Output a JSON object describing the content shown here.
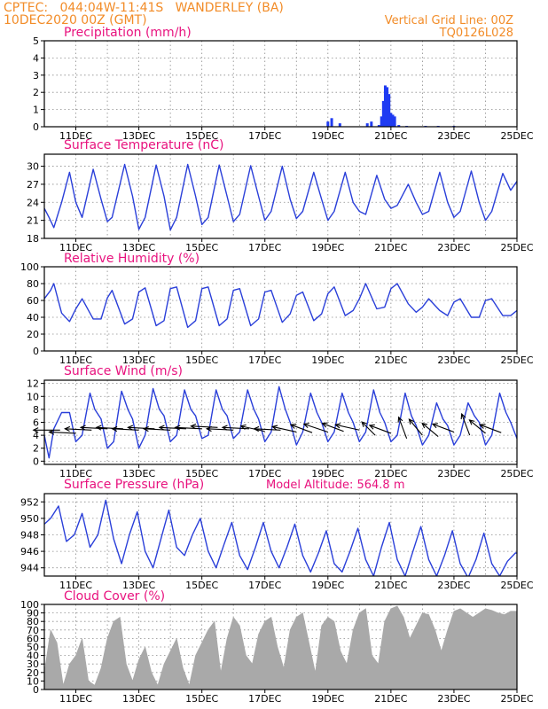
{
  "header": {
    "line1_left": "CPTEC:   044:04W-11:41S   WANDERLEY (BA)",
    "line2_left": "10DEC2020 00Z (GMT)",
    "line1_right": "Vertical Grid Line: 00Z",
    "line2_right": "TQ0126L028",
    "model_altitude": "Model Altitude: 564.8 m"
  },
  "colors": {
    "header_text": "#f28c28",
    "panel_title": "#e8127e",
    "series_line": "#2a3fd9",
    "precip_bar": "#1f3bf2",
    "cloud_fill": "#a9a9a9",
    "wind_arrow": "#000000",
    "grid": "#8a8a8a"
  },
  "chart_data": [
    {
      "id": "precip",
      "type": "bar",
      "title": "Precipitation (mm/h)",
      "x_start_day": 10,
      "ylim": [
        0,
        5
      ],
      "yticks": [
        "0",
        "1",
        "2",
        "3",
        "4",
        "5"
      ],
      "xtick_labels": [
        "11DEC",
        "13DEC",
        "15DEC",
        "17DEC",
        "19DEC",
        "21DEC",
        "23DEC",
        "25DEC"
      ],
      "x": [
        19.0,
        19.12,
        19.38,
        20.25,
        20.38,
        20.62,
        20.7,
        20.76,
        20.82,
        20.88,
        20.94,
        21.0,
        21.06,
        21.12,
        21.25,
        21.5,
        22.1,
        22.5,
        23.0
      ],
      "values": [
        0.3,
        0.5,
        0.2,
        0.2,
        0.3,
        0.1,
        0.6,
        1.5,
        2.4,
        2.3,
        1.9,
        0.8,
        0.7,
        0.6,
        0.1,
        0.05,
        0.05,
        0.05,
        0.05
      ],
      "grid": true
    },
    {
      "id": "temp",
      "type": "line",
      "title": "Surface Temperature (nC)",
      "x_start_day": 10,
      "ylim": [
        18,
        32
      ],
      "yticks": [
        "18",
        "21",
        "24",
        "27",
        "30"
      ],
      "ytick_values": [
        18,
        21,
        24,
        27,
        30
      ],
      "xtick_labels": [
        "11DEC",
        "13DEC",
        "15DEC",
        "17DEC",
        "19DEC",
        "21DEC",
        "23DEC",
        "25DEC"
      ],
      "x": [
        10.0,
        10.15,
        10.3,
        10.55,
        10.8,
        11.0,
        11.2,
        11.55,
        11.8,
        12.0,
        12.15,
        12.55,
        12.8,
        13.0,
        13.2,
        13.55,
        13.8,
        14.0,
        14.2,
        14.55,
        14.8,
        15.0,
        15.2,
        15.55,
        15.8,
        16.0,
        16.2,
        16.55,
        16.8,
        17.0,
        17.2,
        17.55,
        17.8,
        18.0,
        18.2,
        18.55,
        18.8,
        19.0,
        19.2,
        19.55,
        19.8,
        20.0,
        20.2,
        20.55,
        20.8,
        21.0,
        21.2,
        21.55,
        21.8,
        22.0,
        22.2,
        22.55,
        22.8,
        23.0,
        23.2,
        23.55,
        23.8,
        24.0,
        24.2,
        24.55,
        24.8,
        25.0
      ],
      "values": [
        23.0,
        21.5,
        19.8,
        24.0,
        29.0,
        24.0,
        21.5,
        29.5,
        24.5,
        20.8,
        21.5,
        30.3,
        25.0,
        19.5,
        21.5,
        30.2,
        25.0,
        19.4,
        21.5,
        30.3,
        25.0,
        20.3,
        21.5,
        30.2,
        25.0,
        20.8,
        22.0,
        30.1,
        25.0,
        21.0,
        22.5,
        30.0,
        24.5,
        21.3,
        22.5,
        29.0,
        24.5,
        21.0,
        22.5,
        29.0,
        24.0,
        22.5,
        22.0,
        28.5,
        24.5,
        23.0,
        23.5,
        27.0,
        24.0,
        22.0,
        22.5,
        29.0,
        24.0,
        21.5,
        22.5,
        29.2,
        24.0,
        21.0,
        22.5,
        28.8,
        26.0,
        27.5
      ],
      "grid": true
    },
    {
      "id": "rh",
      "type": "line",
      "title": "Relative Humidity (%)",
      "x_start_day": 10,
      "ylim": [
        0,
        100
      ],
      "yticks": [
        "0",
        "20",
        "40",
        "60",
        "80",
        "100"
      ],
      "ytick_values": [
        0,
        20,
        40,
        60,
        80,
        100
      ],
      "xtick_labels": [
        "11DEC",
        "13DEC",
        "15DEC",
        "17DEC",
        "19DEC",
        "21DEC",
        "23DEC",
        "25DEC"
      ],
      "x": [
        10.0,
        10.2,
        10.3,
        10.55,
        10.8,
        11.0,
        11.2,
        11.55,
        11.8,
        12.0,
        12.15,
        12.55,
        12.8,
        13.0,
        13.2,
        13.55,
        13.8,
        14.0,
        14.2,
        14.55,
        14.8,
        15.0,
        15.2,
        15.55,
        15.8,
        16.0,
        16.2,
        16.55,
        16.8,
        17.0,
        17.2,
        17.55,
        17.8,
        18.0,
        18.2,
        18.55,
        18.8,
        19.0,
        19.2,
        19.55,
        19.8,
        20.0,
        20.2,
        20.55,
        20.8,
        21.0,
        21.2,
        21.55,
        21.8,
        22.0,
        22.2,
        22.55,
        22.8,
        23.0,
        23.2,
        23.55,
        23.8,
        24.0,
        24.2,
        24.55,
        24.8,
        25.0
      ],
      "values": [
        62,
        72,
        80,
        45,
        35,
        50,
        62,
        38,
        38,
        63,
        72,
        32,
        38,
        70,
        75,
        30,
        36,
        74,
        76,
        28,
        36,
        74,
        76,
        30,
        38,
        72,
        74,
        30,
        38,
        70,
        72,
        34,
        44,
        66,
        70,
        36,
        44,
        68,
        76,
        42,
        48,
        62,
        80,
        50,
        52,
        74,
        80,
        56,
        46,
        52,
        62,
        48,
        42,
        58,
        62,
        40,
        40,
        60,
        62,
        42,
        42,
        48
      ],
      "grid": true
    },
    {
      "id": "wind",
      "type": "line",
      "title": "Surface Wind (m/s)",
      "x_start_day": 10,
      "ylim": [
        -0.5,
        12.5
      ],
      "yticks": [
        "0",
        "2",
        "4",
        "6",
        "8",
        "10",
        "12"
      ],
      "ytick_values": [
        0,
        2,
        4,
        6,
        8,
        10,
        12
      ],
      "xtick_labels": [
        "11DEC",
        "13DEC",
        "15DEC",
        "17DEC",
        "19DEC",
        "21DEC",
        "23DEC",
        "25DEC"
      ],
      "x": [
        10.0,
        10.15,
        10.3,
        10.55,
        10.8,
        11.0,
        11.2,
        11.45,
        11.6,
        11.8,
        12.0,
        12.2,
        12.45,
        12.65,
        12.8,
        13.0,
        13.2,
        13.45,
        13.65,
        13.8,
        14.0,
        14.2,
        14.45,
        14.65,
        14.8,
        15.0,
        15.2,
        15.45,
        15.65,
        15.8,
        16.0,
        16.2,
        16.45,
        16.65,
        16.8,
        17.0,
        17.2,
        17.45,
        17.65,
        17.8,
        18.0,
        18.2,
        18.45,
        18.65,
        18.8,
        19.0,
        19.2,
        19.45,
        19.65,
        19.8,
        20.0,
        20.2,
        20.45,
        20.65,
        20.8,
        21.0,
        21.2,
        21.45,
        21.65,
        21.8,
        22.0,
        22.2,
        22.45,
        22.65,
        22.8,
        23.0,
        23.2,
        23.45,
        23.65,
        23.8,
        24.0,
        24.2,
        24.45,
        24.65,
        24.8,
        25.0
      ],
      "values": [
        4.0,
        0.5,
        5.0,
        7.5,
        7.5,
        3.0,
        4.0,
        10.5,
        8.0,
        6.5,
        2.0,
        3.0,
        10.8,
        8.0,
        6.5,
        2.0,
        4.0,
        11.2,
        8.0,
        7.0,
        3.0,
        4.0,
        11.0,
        8.0,
        7.0,
        3.5,
        4.0,
        11.0,
        8.0,
        7.0,
        3.5,
        4.5,
        11.0,
        8.0,
        6.5,
        3.0,
        4.5,
        11.5,
        8.0,
        6.0,
        2.5,
        4.5,
        10.5,
        7.5,
        6.0,
        3.0,
        4.5,
        10.5,
        7.5,
        6.0,
        3.0,
        4.5,
        11.0,
        7.5,
        6.0,
        3.0,
        4.0,
        10.5,
        7.0,
        5.5,
        2.5,
        4.0,
        9.0,
        6.5,
        5.5,
        2.5,
        4.0,
        9.0,
        7.0,
        6.0,
        2.5,
        4.0,
        10.5,
        7.5,
        6.0,
        3.5
      ],
      "arrows": [
        {
          "x": 10.5,
          "y": 4.8,
          "dx": -1.0,
          "dy": 0.0
        },
        {
          "x": 11.0,
          "y": 4.3,
          "dx": -1.0,
          "dy": 0.05
        },
        {
          "x": 11.5,
          "y": 4.8,
          "dx": -1.0,
          "dy": 0.05
        },
        {
          "x": 12.0,
          "y": 5.0,
          "dx": -1.0,
          "dy": 0.05
        },
        {
          "x": 12.5,
          "y": 5.0,
          "dx": -1.0,
          "dy": 0.05
        },
        {
          "x": 13.0,
          "y": 4.8,
          "dx": -1.0,
          "dy": 0.05
        },
        {
          "x": 13.5,
          "y": 5.0,
          "dx": -1.0,
          "dy": 0.05
        },
        {
          "x": 14.0,
          "y": 4.8,
          "dx": -1.0,
          "dy": 0.05
        },
        {
          "x": 14.5,
          "y": 5.0,
          "dx": -1.0,
          "dy": 0.05
        },
        {
          "x": 15.0,
          "y": 5.0,
          "dx": -1.0,
          "dy": 0.05
        },
        {
          "x": 15.5,
          "y": 5.2,
          "dx": -1.0,
          "dy": 0.05
        },
        {
          "x": 16.0,
          "y": 4.8,
          "dx": -1.0,
          "dy": 0.05
        },
        {
          "x": 16.5,
          "y": 5.0,
          "dx": -1.0,
          "dy": 0.05
        },
        {
          "x": 17.0,
          "y": 4.6,
          "dx": -0.9,
          "dy": 0.2
        },
        {
          "x": 17.5,
          "y": 4.8,
          "dx": -1.0,
          "dy": 0.05
        },
        {
          "x": 18.0,
          "y": 4.5,
          "dx": -0.9,
          "dy": 0.2
        },
        {
          "x": 18.5,
          "y": 4.4,
          "dx": -0.8,
          "dy": 0.3
        },
        {
          "x": 19.0,
          "y": 4.5,
          "dx": -0.9,
          "dy": 0.3
        },
        {
          "x": 19.5,
          "y": 4.6,
          "dx": -0.8,
          "dy": 0.3
        },
        {
          "x": 20.0,
          "y": 4.8,
          "dx": -0.9,
          "dy": 0.2
        },
        {
          "x": 20.5,
          "y": 4.0,
          "dx": -0.5,
          "dy": 0.5
        },
        {
          "x": 21.0,
          "y": 4.3,
          "dx": -0.8,
          "dy": 0.3
        },
        {
          "x": 21.5,
          "y": 3.5,
          "dx": -0.3,
          "dy": 0.8
        },
        {
          "x": 22.0,
          "y": 4.0,
          "dx": -0.5,
          "dy": 0.6
        },
        {
          "x": 22.5,
          "y": 3.8,
          "dx": -0.6,
          "dy": 0.5
        },
        {
          "x": 23.0,
          "y": 4.5,
          "dx": -0.8,
          "dy": 0.3
        },
        {
          "x": 23.5,
          "y": 4.0,
          "dx": -0.3,
          "dy": 0.8
        },
        {
          "x": 24.0,
          "y": 4.3,
          "dx": -0.6,
          "dy": 0.5
        },
        {
          "x": 24.5,
          "y": 4.4,
          "dx": -0.8,
          "dy": 0.3
        }
      ],
      "grid": true
    },
    {
      "id": "pressure",
      "type": "line",
      "title": "Surface Pressure (hPa)",
      "x_start_day": 10,
      "ylim": [
        943,
        953
      ],
      "yticks": [
        "944",
        "946",
        "948",
        "950",
        "952"
      ],
      "ytick_values": [
        944,
        946,
        948,
        950,
        952
      ],
      "xtick_labels": [
        "11DEC",
        "13DEC",
        "15DEC",
        "17DEC",
        "19DEC",
        "21DEC",
        "23DEC",
        "25DEC"
      ],
      "x": [
        10.0,
        10.2,
        10.45,
        10.7,
        10.95,
        11.2,
        11.45,
        11.7,
        11.95,
        12.2,
        12.45,
        12.7,
        12.95,
        13.2,
        13.45,
        13.7,
        13.95,
        14.2,
        14.45,
        14.7,
        14.95,
        15.2,
        15.45,
        15.7,
        15.95,
        16.2,
        16.45,
        16.7,
        16.95,
        17.2,
        17.45,
        17.7,
        17.95,
        18.2,
        18.45,
        18.7,
        18.95,
        19.2,
        19.45,
        19.7,
        19.95,
        20.2,
        20.45,
        20.7,
        20.95,
        21.2,
        21.45,
        21.7,
        21.95,
        22.2,
        22.45,
        22.7,
        22.95,
        23.2,
        23.45,
        23.7,
        23.95,
        24.2,
        24.45,
        24.7,
        24.95,
        25.0
      ],
      "values": [
        949.3,
        950.0,
        951.5,
        947.2,
        948.0,
        950.6,
        946.5,
        948.0,
        952.2,
        947.5,
        944.5,
        948.0,
        950.8,
        946.0,
        944.0,
        947.5,
        951.0,
        946.5,
        945.5,
        948.0,
        950.0,
        946.0,
        944.0,
        946.8,
        949.5,
        945.5,
        943.8,
        946.5,
        949.5,
        946.0,
        944.0,
        946.5,
        949.3,
        945.5,
        943.5,
        945.8,
        948.5,
        944.5,
        943.5,
        946.0,
        948.8,
        945.0,
        943.0,
        946.5,
        949.5,
        945.0,
        943.0,
        946.0,
        949.0,
        945.0,
        943.0,
        945.5,
        948.5,
        944.5,
        942.8,
        945.0,
        948.2,
        944.5,
        943.0,
        944.8,
        945.8,
        945.8
      ],
      "grid": true
    },
    {
      "id": "cloud",
      "type": "area",
      "title": "Cloud Cover (%)",
      "x_start_day": 10,
      "ylim": [
        0,
        100
      ],
      "yticks": [
        "0",
        "10",
        "20",
        "30",
        "40",
        "50",
        "60",
        "70",
        "80",
        "90",
        "100"
      ],
      "ytick_values": [
        0,
        10,
        20,
        30,
        40,
        50,
        60,
        70,
        80,
        90,
        100
      ],
      "xtick_labels": [
        "11DEC",
        "13DEC",
        "15DEC",
        "17DEC",
        "19DEC",
        "21DEC",
        "23DEC",
        "25DEC"
      ],
      "x": [
        10.0,
        10.2,
        10.4,
        10.6,
        10.8,
        11.0,
        11.2,
        11.4,
        11.6,
        11.8,
        12.0,
        12.2,
        12.4,
        12.6,
        12.8,
        13.0,
        13.2,
        13.4,
        13.6,
        13.8,
        14.0,
        14.2,
        14.4,
        14.6,
        14.8,
        15.0,
        15.2,
        15.4,
        15.6,
        15.8,
        16.0,
        16.2,
        16.4,
        16.6,
        16.8,
        17.0,
        17.2,
        17.4,
        17.6,
        17.8,
        18.0,
        18.2,
        18.4,
        18.6,
        18.8,
        19.0,
        19.2,
        19.4,
        19.6,
        19.8,
        20.0,
        20.2,
        20.4,
        20.6,
        20.8,
        21.0,
        21.2,
        21.4,
        21.6,
        21.8,
        22.0,
        22.2,
        22.4,
        22.6,
        22.8,
        23.0,
        23.2,
        23.4,
        23.6,
        23.8,
        24.0,
        24.2,
        24.4,
        24.6,
        24.8,
        25.0
      ],
      "values": [
        20,
        70,
        55,
        5,
        30,
        40,
        60,
        10,
        5,
        25,
        60,
        80,
        85,
        30,
        10,
        35,
        50,
        20,
        5,
        30,
        45,
        60,
        25,
        5,
        40,
        55,
        70,
        80,
        20,
        60,
        85,
        75,
        40,
        30,
        65,
        80,
        85,
        50,
        25,
        70,
        85,
        90,
        55,
        20,
        75,
        85,
        80,
        45,
        30,
        70,
        90,
        95,
        40,
        30,
        80,
        95,
        98,
        85,
        60,
        75,
        90,
        88,
        70,
        45,
        70,
        92,
        95,
        90,
        85,
        90,
        95,
        93,
        90,
        88,
        92,
        92
      ],
      "grid": true
    }
  ]
}
